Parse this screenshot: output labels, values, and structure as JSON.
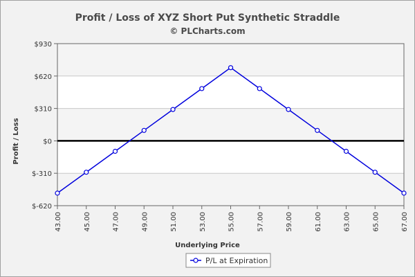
{
  "chart_data": {
    "type": "line",
    "title": "Profit / Loss of XYZ Short Put Synthetic Straddle",
    "subtitle": "© PLCharts.com",
    "xlabel": "Underlying Price",
    "ylabel": "Profit / Loss",
    "x": [
      43,
      45,
      47,
      49,
      51,
      53,
      55,
      57,
      59,
      61,
      63,
      65,
      67
    ],
    "x_tick_labels": [
      "43.00",
      "45.00",
      "47.00",
      "49.00",
      "51.00",
      "53.00",
      "55.00",
      "57.00",
      "59.00",
      "61.00",
      "63.00",
      "65.00",
      "67.00"
    ],
    "series": [
      {
        "name": "P/L at Expiration",
        "color": "#0000dd",
        "values": [
          -500,
          -300,
          -100,
          100,
          300,
          500,
          700,
          500,
          300,
          100,
          -100,
          -300,
          -500
        ]
      }
    ],
    "ylim": [
      -620,
      930
    ],
    "y_ticks": [
      -620,
      -310,
      0,
      310,
      620,
      930
    ],
    "y_tick_labels": [
      "$-620",
      "$-310",
      "$0",
      "$310",
      "$620",
      "$930"
    ],
    "grid": true,
    "zero_line": true,
    "legend_position": "bottom-center"
  }
}
